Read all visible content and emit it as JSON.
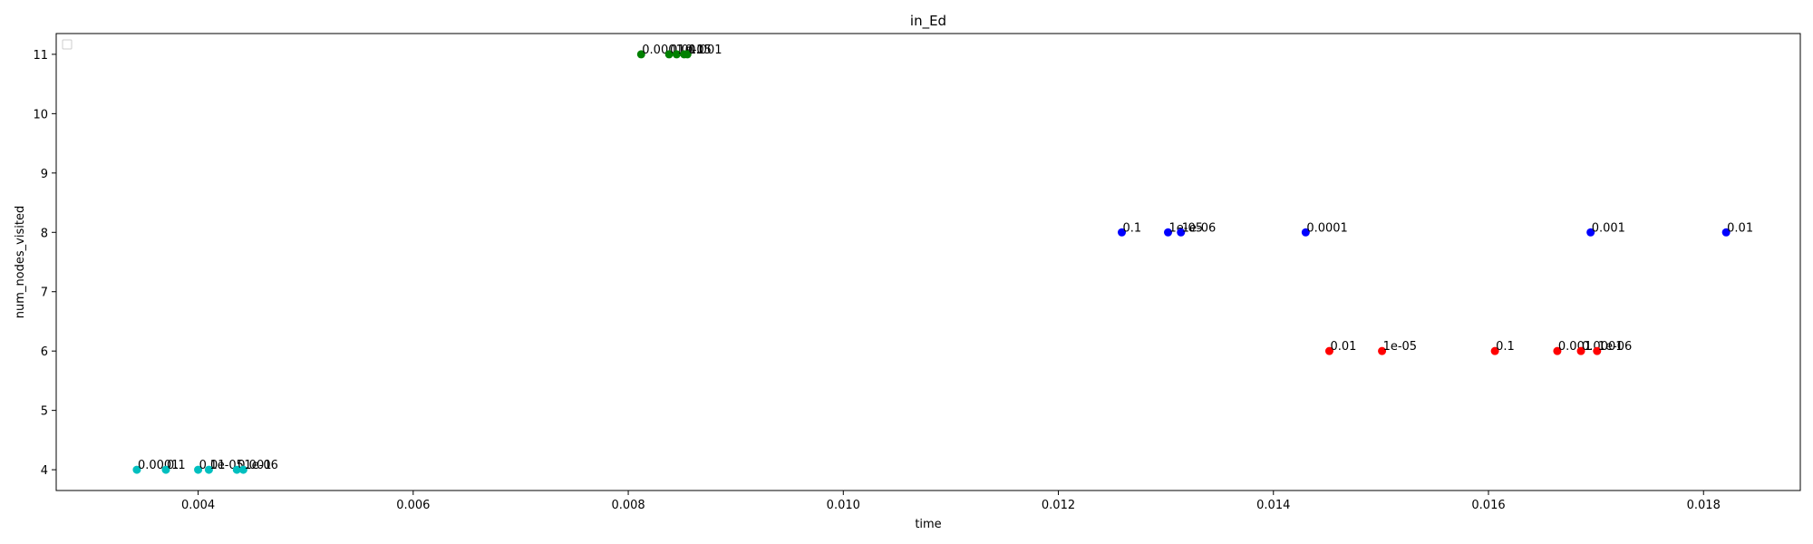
{
  "chart_data": {
    "type": "scatter",
    "title": "in_Ed",
    "xlabel": "time",
    "ylabel": "num_nodes_visited",
    "xlim": [
      0.00268,
      0.0189
    ],
    "ylim": [
      3.65,
      11.35
    ],
    "x_ticks": [
      0.004,
      0.006,
      0.008,
      0.01,
      0.012,
      0.014,
      0.016,
      0.018
    ],
    "x_tick_labels": [
      "0.004",
      "0.006",
      "0.008",
      "0.010",
      "0.012",
      "0.014",
      "0.016",
      "0.018"
    ],
    "y_ticks": [
      4,
      5,
      6,
      7,
      8,
      9,
      10,
      11
    ],
    "y_tick_labels": [
      "4",
      "5",
      "6",
      "7",
      "8",
      "9",
      "10",
      "11"
    ],
    "grid": false,
    "legend": "top-left, empty",
    "series": [
      {
        "color": "#00bfbf",
        "points": [
          {
            "x": 0.00343,
            "y": 4,
            "label": "0.0001"
          },
          {
            "x": 0.0037,
            "y": 4,
            "label": "0.1"
          },
          {
            "x": 0.004,
            "y": 4,
            "label": "0.01"
          },
          {
            "x": 0.0041,
            "y": 4,
            "label": "1e-05"
          },
          {
            "x": 0.00436,
            "y": 4,
            "label": "0.001"
          },
          {
            "x": 0.00442,
            "y": 4,
            "label": "1e-06"
          }
        ]
      },
      {
        "color": "#008000",
        "points": [
          {
            "x": 0.00812,
            "y": 11,
            "label": "0.0001"
          },
          {
            "x": 0.00838,
            "y": 11,
            "label": "0.01"
          },
          {
            "x": 0.00845,
            "y": 11,
            "label": "1e-05"
          },
          {
            "x": 0.00852,
            "y": 11,
            "label": "0.1"
          },
          {
            "x": 0.00855,
            "y": 11,
            "label": "0.001"
          }
        ]
      },
      {
        "color": "#0000ff",
        "points": [
          {
            "x": 0.01259,
            "y": 8,
            "label": "0.1"
          },
          {
            "x": 0.01302,
            "y": 8,
            "label": "1e-05"
          },
          {
            "x": 0.01314,
            "y": 8,
            "label": "1e-06"
          },
          {
            "x": 0.0143,
            "y": 8,
            "label": "0.0001"
          },
          {
            "x": 0.01695,
            "y": 8,
            "label": "0.001"
          },
          {
            "x": 0.01821,
            "y": 8,
            "label": "0.01"
          }
        ]
      },
      {
        "color": "#ff0000",
        "points": [
          {
            "x": 0.01452,
            "y": 6,
            "label": "0.01"
          },
          {
            "x": 0.01501,
            "y": 6,
            "label": "1e-05"
          },
          {
            "x": 0.01606,
            "y": 6,
            "label": "0.1"
          },
          {
            "x": 0.01664,
            "y": 6,
            "label": "0.001"
          },
          {
            "x": 0.01686,
            "y": 6,
            "label": "0.0001"
          },
          {
            "x": 0.01701,
            "y": 6,
            "label": "1e-06"
          }
        ]
      }
    ]
  }
}
